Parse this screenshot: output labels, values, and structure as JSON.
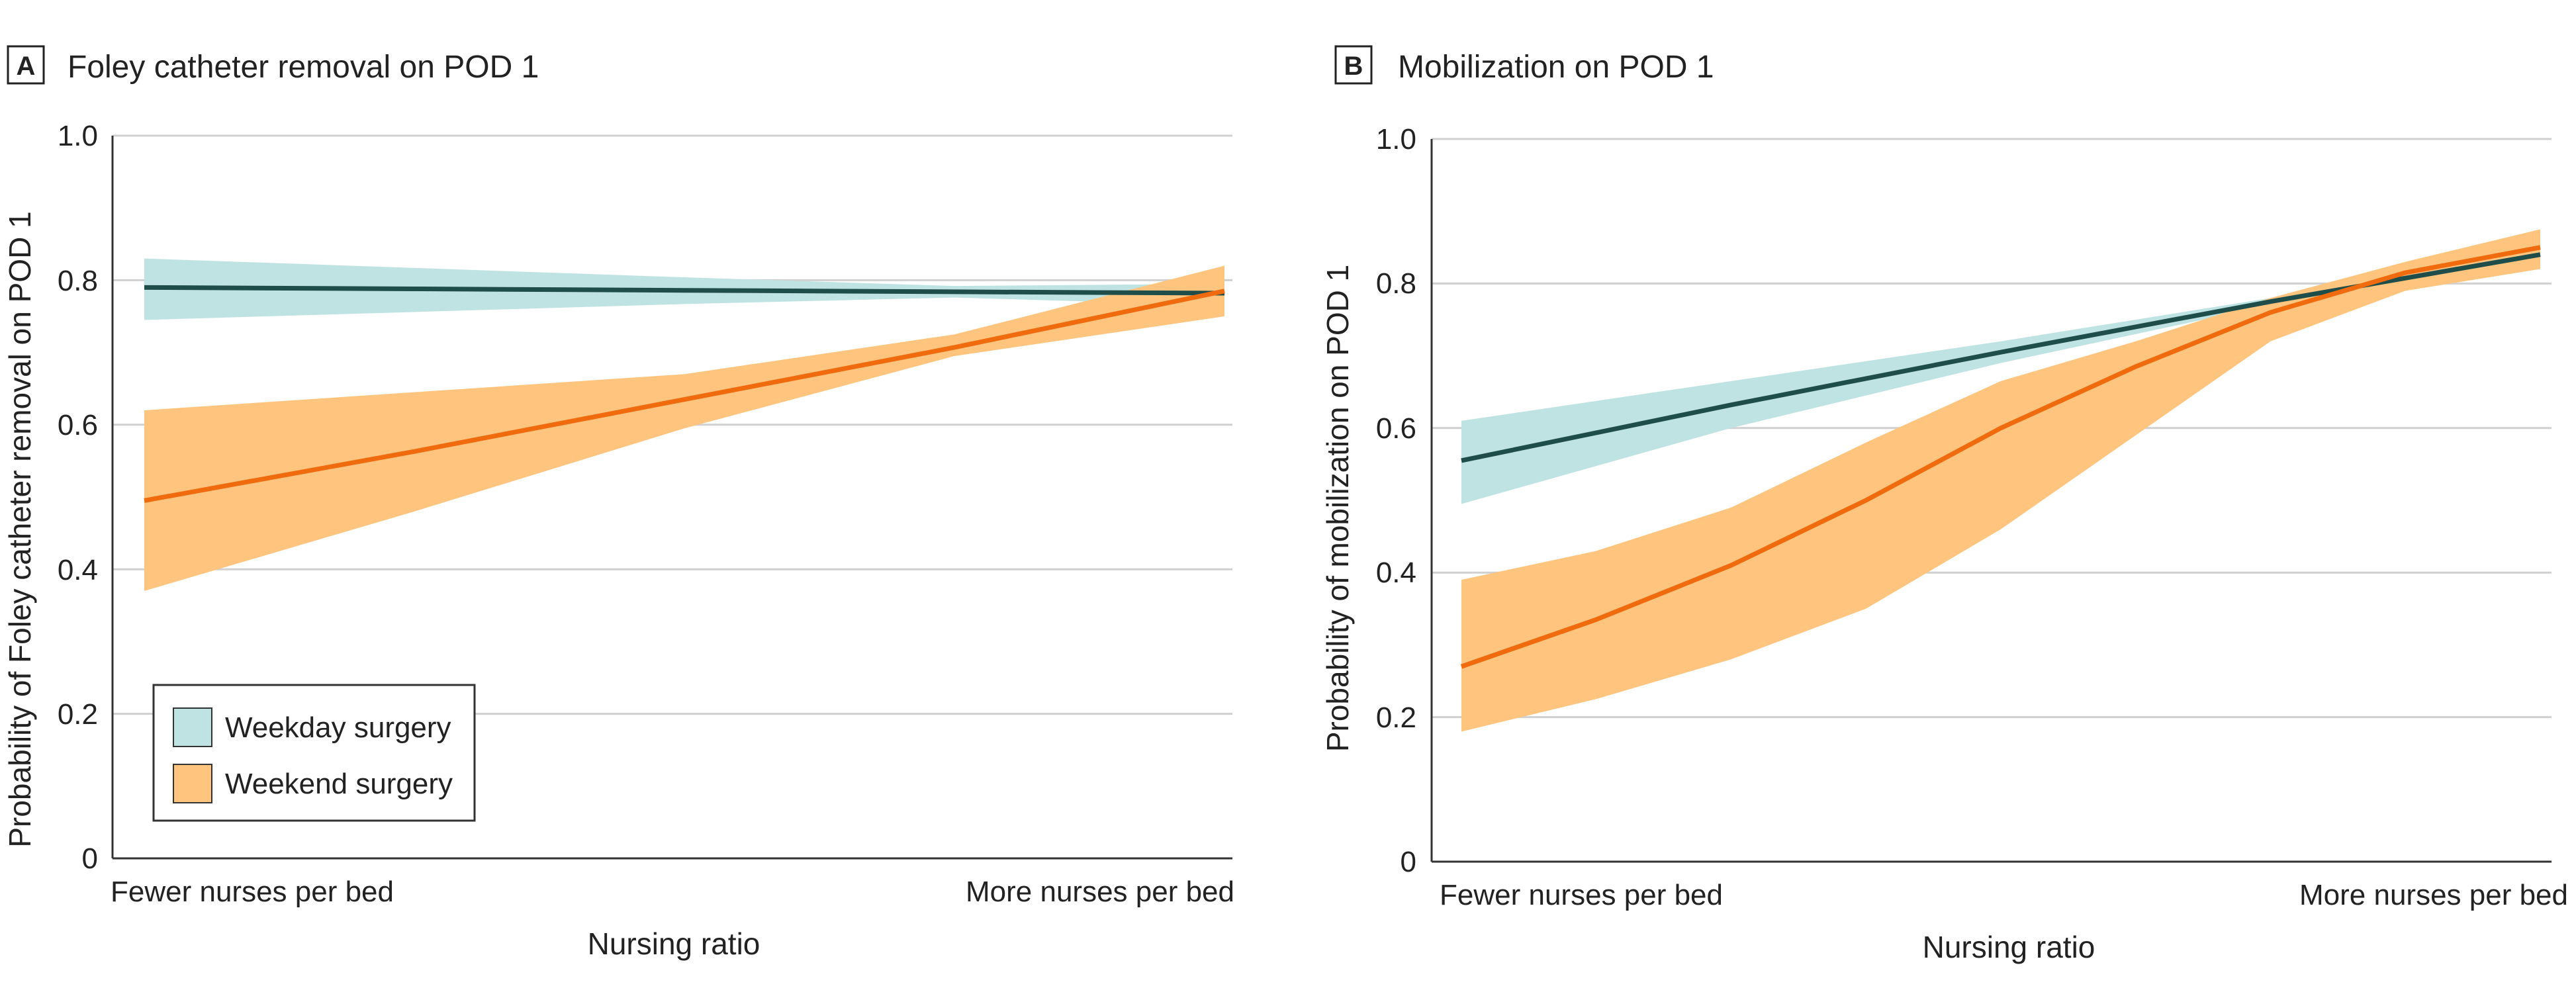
{
  "colors": {
    "weekday_line": "#1f4e4a",
    "weekday_band": "#bfe3e2",
    "weekend_line": "#f06a0e",
    "weekend_band": "#ffc47e",
    "grid": "#d0d0d0",
    "axis": "#333333"
  },
  "legend": {
    "weekday": "Weekday surgery",
    "weekend": "Weekend surgery"
  },
  "chart_data": [
    {
      "type": "line",
      "panel": "A",
      "title": "Foley catheter removal on POD 1",
      "xlabel": "Nursing ratio",
      "ylabel": "Probability of Foley catheter removal on POD 1",
      "x_categories": [
        "Fewer nurses per bed",
        "More nurses per bed"
      ],
      "xlim": [
        0,
        1
      ],
      "ylim": [
        0,
        1
      ],
      "yticks": [
        "0",
        "0.2",
        "0.4",
        "0.6",
        "0.8",
        "1.0"
      ],
      "series": [
        {
          "name": "Weekday surgery",
          "x": [
            0,
            0.25,
            0.5,
            0.75,
            1
          ],
          "y": [
            0.79,
            0.788,
            0.786,
            0.784,
            0.782
          ],
          "lower": [
            0.745,
            0.756,
            0.767,
            0.776,
            0.765
          ],
          "upper": [
            0.83,
            0.817,
            0.804,
            0.792,
            0.795
          ]
        },
        {
          "name": "Weekend surgery",
          "x": [
            0,
            0.25,
            0.5,
            0.75,
            1
          ],
          "y": [
            0.495,
            0.563,
            0.635,
            0.707,
            0.785
          ],
          "lower": [
            0.37,
            0.48,
            0.595,
            0.695,
            0.75
          ],
          "upper": [
            0.62,
            0.645,
            0.67,
            0.725,
            0.82
          ]
        }
      ]
    },
    {
      "type": "line",
      "panel": "B",
      "title": "Mobilization on POD 1",
      "xlabel": "Nursing ratio",
      "ylabel": "Probability of mobilization on POD 1",
      "x_categories": [
        "Fewer nurses per bed",
        "More nurses per bed"
      ],
      "xlim": [
        0,
        1
      ],
      "ylim": [
        0,
        1
      ],
      "yticks": [
        "0",
        "0.2",
        "0.4",
        "0.6",
        "0.8",
        "1.0"
      ],
      "series": [
        {
          "name": "Weekday surgery",
          "x": [
            0,
            0.25,
            0.5,
            0.75,
            1
          ],
          "y": [
            0.555,
            0.632,
            0.705,
            0.775,
            0.84
          ],
          "lower": [
            0.495,
            0.6,
            0.69,
            0.77,
            0.825
          ],
          "upper": [
            0.61,
            0.665,
            0.72,
            0.78,
            0.855
          ]
        },
        {
          "name": "Weekend surgery",
          "x": [
            0,
            0.125,
            0.25,
            0.375,
            0.5,
            0.625,
            0.75,
            0.875,
            1
          ],
          "y": [
            0.27,
            0.335,
            0.41,
            0.5,
            0.6,
            0.685,
            0.76,
            0.815,
            0.85
          ],
          "lower": [
            0.18,
            0.225,
            0.28,
            0.35,
            0.46,
            0.59,
            0.72,
            0.79,
            0.82
          ],
          "upper": [
            0.39,
            0.43,
            0.49,
            0.58,
            0.665,
            0.72,
            0.78,
            0.83,
            0.875
          ]
        }
      ]
    }
  ]
}
